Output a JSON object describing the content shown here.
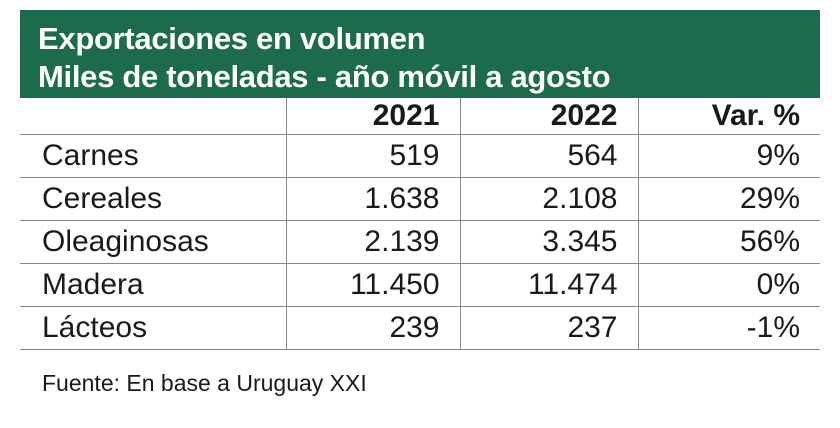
{
  "header": {
    "line1": "Exportaciones en volumen",
    "line2": "Miles de toneladas - año móvil a agosto"
  },
  "columns": [
    "",
    "2021",
    "2022",
    "Var. %"
  ],
  "rows": [
    {
      "label": "Carnes",
      "v2021": "519",
      "v2022": "564",
      "var": "9%"
    },
    {
      "label": "Cereales",
      "v2021": "1.638",
      "v2022": "2.108",
      "var": "29%"
    },
    {
      "label": "Oleaginosas",
      "v2021": "2.139",
      "v2022": "3.345",
      "var": "56%"
    },
    {
      "label": "Madera",
      "v2021": "11.450",
      "v2022": "11.474",
      "var": "0%"
    },
    {
      "label": "Lácteos",
      "v2021": "239",
      "v2022": "237",
      "var": "-1%"
    }
  ],
  "source": "Fuente: En base a Uruguay XXI",
  "colors": {
    "header_bg": "#1c6b4a",
    "header_text": "#ffffff"
  },
  "chart_data": {
    "type": "table",
    "title": "Exportaciones en volumen",
    "subtitle": "Miles de toneladas - año móvil a agosto",
    "columns": [
      "2021",
      "2022",
      "Var. %"
    ],
    "categories": [
      "Carnes",
      "Cereales",
      "Oleaginosas",
      "Madera",
      "Lácteos"
    ],
    "series": [
      {
        "name": "2021",
        "values": [
          519,
          1638,
          2139,
          11450,
          239
        ]
      },
      {
        "name": "2022",
        "values": [
          564,
          2108,
          3345,
          11474,
          237
        ]
      },
      {
        "name": "Var. %",
        "values": [
          9,
          29,
          56,
          0,
          -1
        ]
      }
    ]
  }
}
